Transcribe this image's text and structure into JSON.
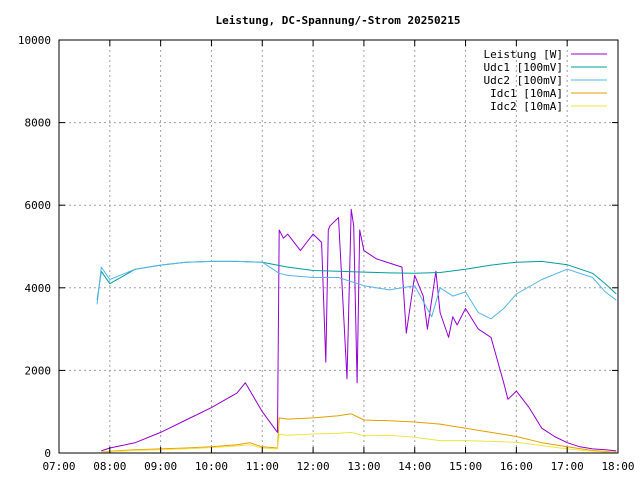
{
  "chart_data": {
    "type": "line",
    "title": "Leistung, DC-Spannung/-Strom 20250215",
    "xlabel": "",
    "ylabel": "",
    "grid": true,
    "legend_position": "top-right",
    "xlim": [
      "07:00",
      "18:00"
    ],
    "ylim": [
      0,
      10000
    ],
    "x_ticks": [
      "07:00",
      "08:00",
      "09:00",
      "10:00",
      "11:00",
      "12:00",
      "13:00",
      "14:00",
      "15:00",
      "16:00",
      "17:00",
      "18:00"
    ],
    "y_ticks": [
      "0",
      "2000",
      "4000",
      "6000",
      "8000",
      "10000"
    ],
    "series": [
      {
        "name": "Leistung [W]",
        "color": "#9400d3",
        "x": [
          "07:50",
          "08:00",
          "08:30",
          "09:00",
          "09:30",
          "10:00",
          "10:30",
          "10:40",
          "11:00",
          "11:18",
          "11:20",
          "11:25",
          "11:30",
          "11:45",
          "12:00",
          "12:10",
          "12:15",
          "12:18",
          "12:20",
          "12:30",
          "12:40",
          "12:45",
          "12:48",
          "12:52",
          "12:55",
          "13:00",
          "13:15",
          "13:30",
          "13:45",
          "13:50",
          "14:00",
          "14:10",
          "14:15",
          "14:25",
          "14:30",
          "14:40",
          "14:45",
          "14:50",
          "15:00",
          "15:15",
          "15:30",
          "15:45",
          "15:50",
          "16:00",
          "16:15",
          "16:30",
          "16:45",
          "17:00",
          "17:15",
          "17:30",
          "17:45",
          "17:58"
        ],
        "values": [
          50,
          120,
          250,
          500,
          800,
          1100,
          1450,
          1700,
          1000,
          500,
          5400,
          5200,
          5300,
          4900,
          5300,
          5100,
          2200,
          5400,
          5500,
          5700,
          1800,
          5900,
          5500,
          1700,
          5400,
          4900,
          4700,
          4600,
          4500,
          2900,
          4300,
          3800,
          3000,
          4400,
          3400,
          2800,
          3300,
          3100,
          3500,
          3000,
          2800,
          1700,
          1300,
          1500,
          1100,
          600,
          400,
          250,
          150,
          100,
          80,
          50
        ]
      },
      {
        "name": "Udc1 [100mV]",
        "color": "#009e9e",
        "x": [
          "07:45",
          "07:50",
          "08:00",
          "08:30",
          "09:00",
          "09:30",
          "10:00",
          "10:30",
          "11:00",
          "11:30",
          "12:00",
          "12:30",
          "13:00",
          "13:30",
          "14:00",
          "14:30",
          "15:00",
          "15:30",
          "16:00",
          "16:30",
          "17:00",
          "17:30",
          "17:45",
          "17:58"
        ],
        "values": [
          3700,
          4400,
          4100,
          4450,
          4550,
          4620,
          4640,
          4640,
          4620,
          4500,
          4420,
          4400,
          4380,
          4360,
          4350,
          4370,
          4450,
          4550,
          4620,
          4640,
          4560,
          4350,
          4100,
          3850
        ]
      },
      {
        "name": "Udc2 [100mV]",
        "color": "#56b4e9",
        "x": [
          "07:45",
          "07:50",
          "08:00",
          "08:30",
          "09:00",
          "09:30",
          "10:00",
          "10:30",
          "11:00",
          "11:20",
          "11:30",
          "12:00",
          "12:30",
          "13:00",
          "13:30",
          "14:00",
          "14:20",
          "14:30",
          "14:45",
          "15:00",
          "15:15",
          "15:30",
          "15:45",
          "16:00",
          "16:30",
          "17:00",
          "17:30",
          "17:45",
          "17:58"
        ],
        "values": [
          3600,
          4500,
          4200,
          4450,
          4550,
          4620,
          4640,
          4640,
          4620,
          4350,
          4300,
          4250,
          4250,
          4050,
          3950,
          4050,
          3300,
          4000,
          3800,
          3900,
          3400,
          3250,
          3500,
          3850,
          4200,
          4450,
          4250,
          3900,
          3700
        ]
      },
      {
        "name": "Idc1 [10mA]",
        "color": "#e69f00",
        "x": [
          "07:50",
          "08:00",
          "08:30",
          "09:00",
          "09:30",
          "10:00",
          "10:30",
          "10:45",
          "11:00",
          "11:18",
          "11:20",
          "11:30",
          "12:00",
          "12:30",
          "12:45",
          "13:00",
          "13:30",
          "14:00",
          "14:30",
          "15:00",
          "15:30",
          "16:00",
          "16:30",
          "17:00",
          "17:30",
          "17:58"
        ],
        "values": [
          20,
          40,
          80,
          100,
          120,
          150,
          200,
          250,
          150,
          120,
          850,
          820,
          850,
          900,
          950,
          800,
          780,
          750,
          700,
          600,
          500,
          400,
          250,
          150,
          60,
          20
        ]
      },
      {
        "name": "Idc2 [10mA]",
        "color": "#f0e442",
        "x": [
          "07:50",
          "08:00",
          "08:30",
          "09:00",
          "09:30",
          "10:00",
          "10:30",
          "10:45",
          "11:00",
          "11:18",
          "11:20",
          "11:30",
          "12:00",
          "12:30",
          "12:45",
          "13:00",
          "13:30",
          "14:00",
          "14:30",
          "15:00",
          "15:30",
          "16:00",
          "16:30",
          "17:00",
          "17:30",
          "17:58"
        ],
        "values": [
          10,
          30,
          60,
          80,
          100,
          130,
          170,
          200,
          120,
          100,
          450,
          430,
          460,
          480,
          500,
          420,
          430,
          380,
          300,
          300,
          280,
          260,
          180,
          100,
          40,
          10
        ]
      }
    ]
  }
}
